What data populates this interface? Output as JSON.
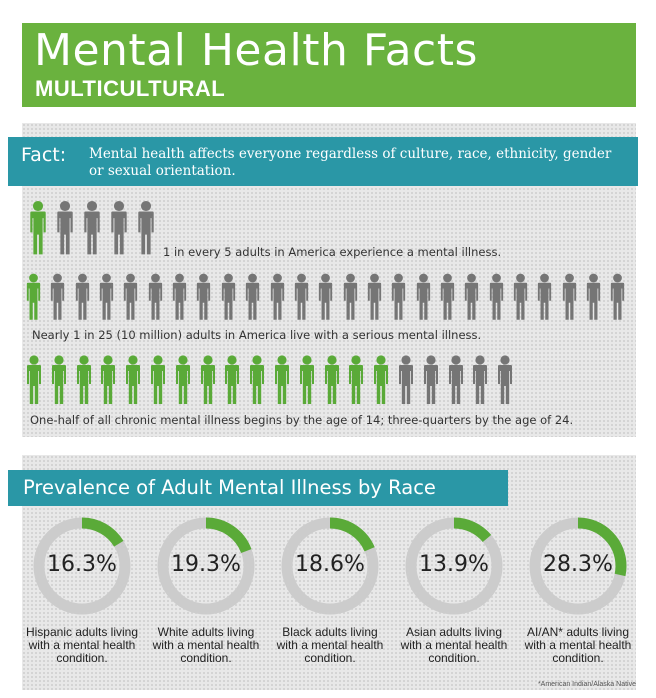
{
  "header": {
    "title": "Mental Health Facts",
    "subtitle": "MULTICULTURAL",
    "bg_color": "#6ab23e"
  },
  "fact": {
    "label": "Fact:",
    "text": "Mental health affects everyone regardless of culture, race, ethnicity, gender or sexual orientation."
  },
  "stats": [
    {
      "caption": "1 in every 5 adults in America experience a mental illness.",
      "total": 5,
      "highlighted": 1,
      "icon": "person-icon"
    },
    {
      "caption": "Nearly 1 in 25 (10 million) adults in America live with a serious mental illness.",
      "total": 25,
      "highlighted": 1,
      "icon": "person-icon"
    },
    {
      "caption": "One-half of all chronic mental illness begins by the age of 14; three-quarters by the age of 24.",
      "total": 20,
      "highlighted": 15,
      "icon": "person-icon"
    }
  ],
  "colors": {
    "green": "#5aaa38",
    "gray": "#757575",
    "teal": "#2a97a6",
    "ring_gray": "#cccccc"
  },
  "prevalence": {
    "title": "Prevalence of Adult Mental Illness by Race",
    "items": [
      {
        "value": "16.3%",
        "percent": 16.3,
        "label": "Hispanic adults living with a mental health condition."
      },
      {
        "value": "19.3%",
        "percent": 19.3,
        "label": "White adults living with a mental health condition."
      },
      {
        "value": "18.6%",
        "percent": 18.6,
        "label": "Black adults living with a mental health condition."
      },
      {
        "value": "13.9%",
        "percent": 13.9,
        "label": "Asian adults living with a mental health condition."
      },
      {
        "value": "28.3%",
        "percent": 28.3,
        "label": "AI/AN* adults living with a mental health condition."
      }
    ],
    "footnote": "*American Indian/Alaska Native"
  }
}
